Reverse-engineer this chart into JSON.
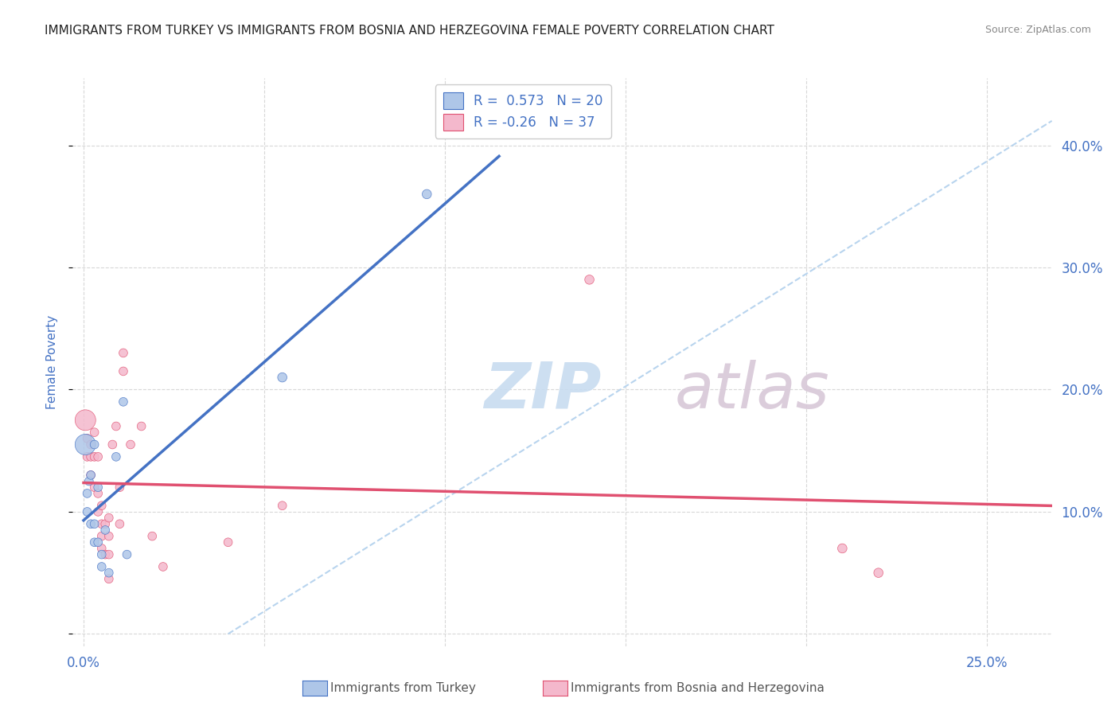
{
  "title": "IMMIGRANTS FROM TURKEY VS IMMIGRANTS FROM BOSNIA AND HERZEGOVINA FEMALE POVERTY CORRELATION CHART",
  "source": "Source: ZipAtlas.com",
  "ylabel": "Female Poverty",
  "x_ticks": [
    0.0,
    0.05,
    0.1,
    0.15,
    0.2,
    0.25
  ],
  "x_tick_labels": [
    "0.0%",
    "",
    "",
    "",
    "",
    "25.0%"
  ],
  "y_ticks": [
    0.0,
    0.1,
    0.2,
    0.3,
    0.4
  ],
  "y_tick_labels_right": [
    "",
    "10.0%",
    "20.0%",
    "30.0%",
    "40.0%"
  ],
  "xlim": [
    -0.003,
    0.268
  ],
  "ylim": [
    -0.01,
    0.455
  ],
  "r_turkey": 0.573,
  "n_turkey": 20,
  "r_bosnia": -0.26,
  "n_bosnia": 37,
  "turkey_color": "#aec6e8",
  "turkey_line_color": "#4472c4",
  "bosnia_color": "#f4b8cc",
  "bosnia_line_color": "#e05070",
  "diagonal_color": "#b8d4ee",
  "background_color": "#ffffff",
  "grid_color": "#d8d8d8",
  "legend_blue_box": "#aec6e8",
  "legend_pink_box": "#f4b8cc",
  "turkey_x": [
    0.0005,
    0.001,
    0.001,
    0.0015,
    0.002,
    0.002,
    0.003,
    0.003,
    0.003,
    0.004,
    0.004,
    0.005,
    0.005,
    0.006,
    0.007,
    0.009,
    0.011,
    0.012,
    0.055,
    0.095
  ],
  "turkey_y": [
    0.155,
    0.115,
    0.1,
    0.125,
    0.13,
    0.09,
    0.155,
    0.09,
    0.075,
    0.12,
    0.075,
    0.065,
    0.055,
    0.085,
    0.05,
    0.145,
    0.19,
    0.065,
    0.21,
    0.36
  ],
  "bosnia_x": [
    0.0005,
    0.001,
    0.001,
    0.002,
    0.002,
    0.002,
    0.003,
    0.003,
    0.003,
    0.004,
    0.004,
    0.004,
    0.005,
    0.005,
    0.005,
    0.005,
    0.006,
    0.006,
    0.007,
    0.007,
    0.007,
    0.007,
    0.008,
    0.009,
    0.01,
    0.01,
    0.011,
    0.011,
    0.013,
    0.016,
    0.019,
    0.022,
    0.04,
    0.055,
    0.14,
    0.21,
    0.22
  ],
  "bosnia_y": [
    0.175,
    0.16,
    0.145,
    0.155,
    0.145,
    0.13,
    0.165,
    0.145,
    0.12,
    0.145,
    0.115,
    0.1,
    0.105,
    0.09,
    0.08,
    0.07,
    0.09,
    0.065,
    0.095,
    0.08,
    0.065,
    0.045,
    0.155,
    0.17,
    0.12,
    0.09,
    0.215,
    0.23,
    0.155,
    0.17,
    0.08,
    0.055,
    0.075,
    0.105,
    0.29,
    0.07,
    0.05
  ],
  "turkey_sizes": [
    350,
    60,
    60,
    60,
    60,
    60,
    60,
    60,
    60,
    60,
    60,
    60,
    60,
    60,
    60,
    60,
    60,
    60,
    70,
    70
  ],
  "bosnia_sizes": [
    350,
    60,
    60,
    60,
    60,
    60,
    60,
    60,
    60,
    60,
    60,
    60,
    60,
    60,
    60,
    60,
    60,
    60,
    60,
    60,
    60,
    60,
    60,
    60,
    60,
    60,
    60,
    60,
    60,
    60,
    60,
    60,
    60,
    60,
    70,
    70,
    70
  ],
  "title_color": "#222222",
  "tick_label_color": "#4472c4",
  "watermark_zip_color": "#c8dcf0",
  "watermark_atlas_color": "#d8c8d8",
  "legend_r_color": "#4472c4"
}
